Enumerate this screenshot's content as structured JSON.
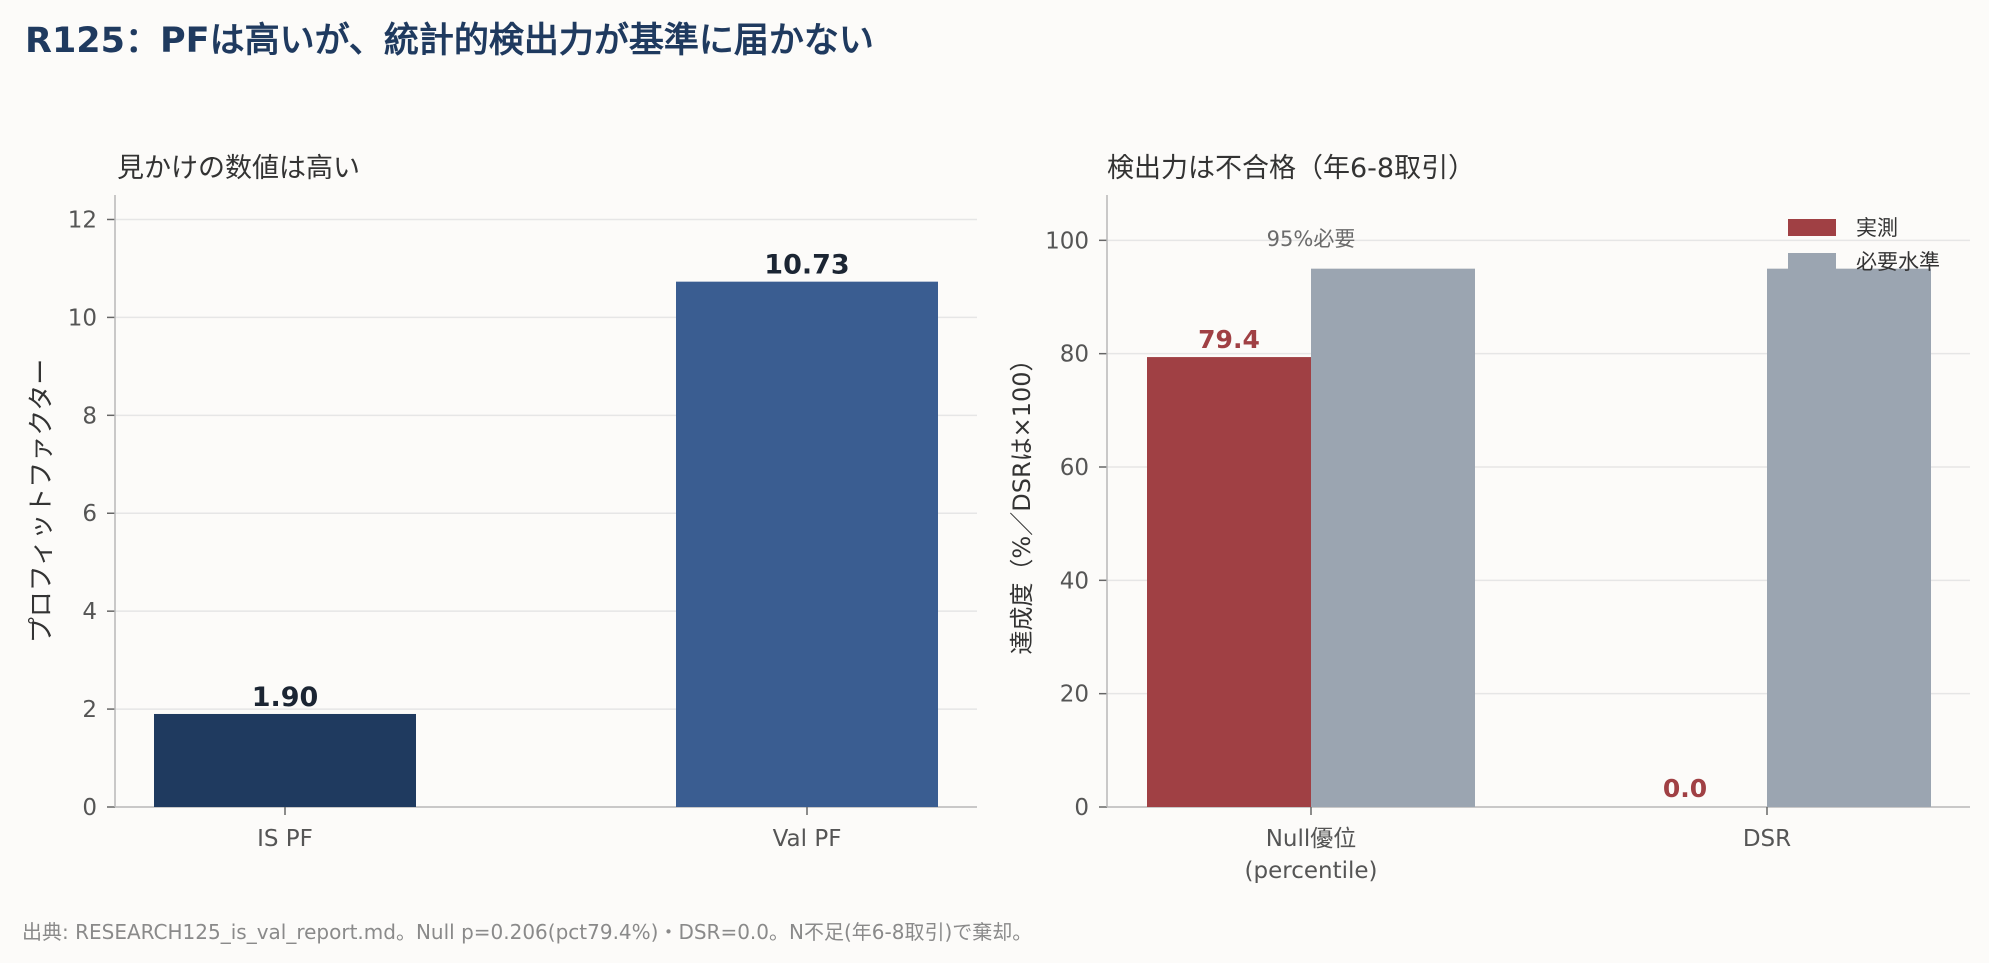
{
  "figure": {
    "title": "R125：PFは高いが、統計的検出力が基準に届かない",
    "footer": "出典: RESEARCH125_is_val_report.md。Null p=0.206(pct79.4%)・DSR=0.0。N不足(年6-8取引)で棄却。"
  },
  "chart_data": [
    {
      "type": "bar",
      "title": "見かけの数値は高い",
      "xlabel": "",
      "ylabel": "プロフィットファクター",
      "categories": [
        "IS PF",
        "Val PF"
      ],
      "values": [
        1.9,
        10.73
      ],
      "value_labels": [
        "1.90",
        "10.73"
      ],
      "colors": [
        "#1f3a5f",
        "#3a5d91"
      ],
      "ylim": [
        0,
        12.5
      ],
      "yticks": [
        0,
        2,
        4,
        6,
        8,
        10,
        12
      ],
      "grid": "horizontal"
    },
    {
      "type": "bar",
      "title": "検出力は不合格（年6-8取引）",
      "xlabel": "",
      "ylabel": "達成度（%／DSRは×100）",
      "categories": [
        "Null優位\n(percentile)",
        "DSR"
      ],
      "series": [
        {
          "name": "実測",
          "values": [
            79.4,
            0.0
          ],
          "value_labels": [
            "79.4",
            "0.0"
          ],
          "color": "#a04044"
        },
        {
          "name": "必要水準",
          "values": [
            95,
            95
          ],
          "color": "#9ba5b1"
        }
      ],
      "annotation": "95%必要",
      "ylim": [
        0,
        100
      ],
      "yticks": [
        0,
        20,
        40,
        60,
        80,
        100
      ],
      "grid": "horizontal",
      "legend": "top-right"
    }
  ]
}
